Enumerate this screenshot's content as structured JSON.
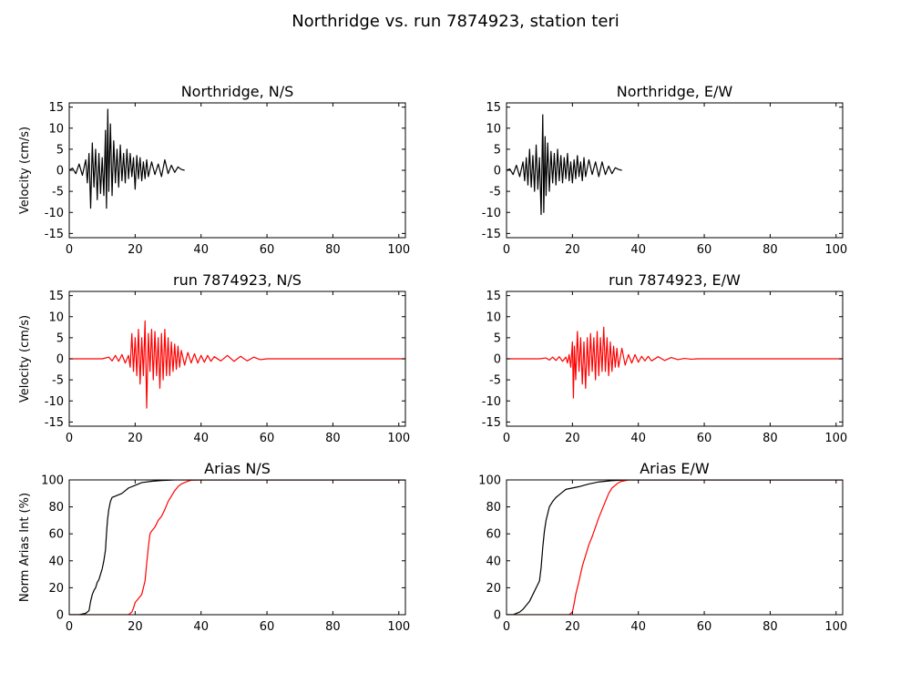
{
  "figure": {
    "suptitle": "Northridge vs. run 7874923, station teri"
  },
  "chart_data": [
    {
      "type": "line",
      "title": "Northridge, N/S",
      "ylabel": "Velocity (cm/s)",
      "xlabel": "",
      "xlim": [
        0,
        102
      ],
      "ylim": [
        -16,
        16
      ],
      "xticks": [
        0,
        20,
        40,
        60,
        80,
        100
      ],
      "yticks": [
        -15,
        -10,
        -5,
        0,
        5,
        10,
        15
      ],
      "series": [
        {
          "color": "#000000",
          "x": [
            0,
            1,
            2,
            3,
            4,
            5,
            5.5,
            6,
            6.5,
            7,
            7.5,
            8,
            8.5,
            9,
            9.5,
            10,
            10.5,
            11,
            11.3,
            11.7,
            12,
            12.5,
            13,
            13.5,
            14,
            14.5,
            15,
            15.5,
            16,
            16.5,
            17,
            17.5,
            18,
            18.5,
            19,
            19.5,
            20,
            20.5,
            21,
            21.5,
            22,
            22.5,
            23,
            23.5,
            24,
            25,
            26,
            27,
            28,
            29,
            30,
            31,
            32,
            33,
            34,
            35
          ],
          "y": [
            0,
            0.5,
            -0.8,
            1.5,
            -1.2,
            2.5,
            -3,
            4,
            -9,
            6.5,
            -4,
            5,
            -7,
            4,
            -5.5,
            3,
            -6,
            9.5,
            -9,
            14.5,
            -5,
            11,
            -6,
            7,
            -3,
            5,
            -4,
            6,
            -2.5,
            4,
            -3,
            5,
            -2,
            4,
            -1.5,
            3,
            -4.5,
            3.5,
            -2,
            3,
            -2.5,
            2,
            -2,
            2.5,
            -1.5,
            2,
            -1,
            1.5,
            -1.5,
            2.5,
            -0.8,
            1.2,
            -0.5,
            0.8,
            0.2,
            0
          ]
        }
      ]
    },
    {
      "type": "line",
      "title": "Northridge, E/W",
      "ylabel": "",
      "xlabel": "",
      "xlim": [
        0,
        102
      ],
      "ylim": [
        -16,
        16
      ],
      "xticks": [
        0,
        20,
        40,
        60,
        80,
        100
      ],
      "yticks": [
        -15,
        -10,
        -5,
        0,
        5,
        10,
        15
      ],
      "series": [
        {
          "color": "#000000",
          "x": [
            0,
            1,
            2,
            3,
            4,
            5,
            5.5,
            6,
            6.5,
            7,
            7.5,
            8,
            8.5,
            9,
            9.5,
            10,
            10.5,
            11,
            11.3,
            11.7,
            12,
            12.5,
            13,
            13.5,
            14,
            14.5,
            15,
            15.5,
            16,
            16.5,
            17,
            17.5,
            18,
            18.5,
            19,
            19.5,
            20,
            20.5,
            21,
            21.5,
            22,
            22.5,
            23,
            23.5,
            24,
            25,
            26,
            27,
            28,
            29,
            30,
            31,
            32,
            33,
            34,
            35
          ],
          "y": [
            0,
            0.3,
            -1,
            1.2,
            -1.5,
            2,
            -2.5,
            3,
            -3.5,
            5,
            -4,
            3.5,
            -5,
            6,
            -4.5,
            3,
            -10.5,
            13.2,
            -10,
            8,
            -6,
            6.5,
            -5,
            4.5,
            -3,
            4,
            -3.5,
            5,
            -2.5,
            3.5,
            -3,
            3,
            -2,
            4,
            -2.5,
            2,
            -3,
            2.5,
            -2,
            3.5,
            -1.5,
            2,
            -2.5,
            3,
            -1.5,
            2.5,
            -1,
            2,
            -1.5,
            2,
            -1,
            1,
            -0.8,
            0.6,
            0.2,
            0
          ]
        }
      ]
    },
    {
      "type": "line",
      "title": "run 7874923, N/S",
      "ylabel": "Velocity (cm/s)",
      "xlabel": "",
      "xlim": [
        0,
        102
      ],
      "ylim": [
        -16,
        16
      ],
      "xticks": [
        0,
        20,
        40,
        60,
        80,
        100
      ],
      "yticks": [
        -15,
        -10,
        -5,
        0,
        5,
        10,
        15
      ],
      "series": [
        {
          "color": "#ff0000",
          "x": [
            0,
            10,
            12,
            13,
            14,
            15,
            16,
            17,
            18,
            18.5,
            19,
            19.5,
            20,
            20.5,
            21,
            21.5,
            22,
            22.5,
            23,
            23.5,
            24,
            24.5,
            25,
            25.5,
            26,
            26.5,
            27,
            27.5,
            28,
            28.5,
            29,
            29.5,
            30,
            30.5,
            31,
            31.5,
            32,
            32.5,
            33,
            33.5,
            34,
            35,
            36,
            37,
            38,
            39,
            40,
            41,
            42,
            43,
            44,
            46,
            48,
            50,
            52,
            54,
            56,
            58,
            60,
            102
          ],
          "y": [
            0,
            0,
            0.4,
            -0.5,
            0.8,
            -0.6,
            1,
            -1,
            0.8,
            -2,
            6,
            -3,
            5,
            -4,
            7,
            -6,
            5,
            -4,
            9,
            -11.7,
            6,
            -3,
            7,
            -5,
            6.5,
            -4,
            5,
            -7,
            6,
            -5,
            7,
            -4,
            5,
            -4,
            4,
            -3,
            3.5,
            -2.5,
            3,
            -2,
            2,
            -1.5,
            1.5,
            -1,
            1.2,
            -1,
            0.8,
            -0.8,
            0.8,
            -0.6,
            0.5,
            -0.5,
            0.8,
            -0.6,
            0.6,
            -0.5,
            0.4,
            -0.2,
            0,
            0
          ]
        }
      ]
    },
    {
      "type": "line",
      "title": "run 7874923, E/W",
      "ylabel": "",
      "xlabel": "",
      "xlim": [
        0,
        102
      ],
      "ylim": [
        -16,
        16
      ],
      "xticks": [
        0,
        20,
        40,
        60,
        80,
        100
      ],
      "yticks": [
        -15,
        -10,
        -5,
        0,
        5,
        10,
        15
      ],
      "series": [
        {
          "color": "#ff0000",
          "x": [
            0,
            10,
            12,
            13,
            14,
            15,
            16,
            17,
            18,
            18.5,
            19,
            19.5,
            20,
            20.3,
            20.6,
            21,
            21.5,
            22,
            22.5,
            23,
            23.5,
            24,
            24.5,
            25,
            25.5,
            26,
            26.5,
            27,
            27.5,
            28,
            28.5,
            29,
            29.5,
            30,
            30.5,
            31,
            31.5,
            32,
            32.5,
            33,
            33.5,
            34,
            35,
            36,
            37,
            38,
            39,
            40,
            41,
            42,
            43,
            44,
            46,
            48,
            50,
            52,
            54,
            56,
            58,
            60,
            102
          ],
          "y": [
            0,
            0,
            0.2,
            -0.3,
            0.4,
            -0.4,
            0.5,
            -0.6,
            0.4,
            -1,
            1,
            -2,
            4,
            -9.3,
            3,
            -5,
            6.5,
            -3,
            5,
            -6,
            4,
            -7,
            5,
            -4,
            6,
            -3,
            5,
            -5,
            6.5,
            -4,
            5,
            -3,
            7.5,
            -3,
            5,
            -4,
            4,
            -3,
            3,
            -2,
            2.5,
            -2,
            2.5,
            -1.5,
            1,
            -1,
            1,
            -0.8,
            0.6,
            -0.5,
            0.6,
            -0.5,
            0.5,
            -0.4,
            0.3,
            -0.2,
            0.1,
            -0.1,
            0,
            0,
            0
          ]
        }
      ]
    },
    {
      "type": "line",
      "title": "Arias N/S",
      "ylabel": "Norm Arias Int (%)",
      "xlabel": "",
      "xlim": [
        0,
        102
      ],
      "ylim": [
        0,
        100
      ],
      "xticks": [
        0,
        20,
        40,
        60,
        80,
        100
      ],
      "yticks": [
        0,
        20,
        40,
        60,
        80,
        100
      ],
      "series": [
        {
          "color": "#000000",
          "x": [
            0,
            3,
            5,
            6,
            6.5,
            7,
            7.5,
            8,
            8.5,
            9,
            9.5,
            10,
            10.5,
            11,
            11.3,
            11.6,
            12,
            12.5,
            13,
            14,
            15,
            16,
            17,
            18,
            20,
            22,
            25,
            28,
            32,
            102
          ],
          "y": [
            0,
            0,
            1,
            3,
            10,
            15,
            18,
            20,
            24,
            26,
            30,
            34,
            40,
            48,
            60,
            70,
            78,
            84,
            87,
            88,
            89,
            90,
            92,
            94,
            96,
            98,
            99,
            99.6,
            100,
            100
          ]
        },
        {
          "color": "#ff0000",
          "x": [
            0,
            18,
            19,
            19.5,
            20,
            21,
            22,
            23,
            23.5,
            24,
            24.5,
            25,
            26,
            27,
            28,
            29,
            30,
            31,
            32,
            33,
            34,
            35,
            36,
            37,
            40,
            102
          ],
          "y": [
            0,
            0,
            2,
            5,
            9,
            12,
            15,
            25,
            38,
            50,
            60,
            62,
            65,
            70,
            73,
            78,
            84,
            88,
            92,
            95,
            97,
            98,
            99,
            99.8,
            100,
            100
          ]
        }
      ]
    },
    {
      "type": "line",
      "title": "Arias E/W",
      "ylabel": "",
      "xlabel": "",
      "xlim": [
        0,
        102
      ],
      "ylim": [
        0,
        100
      ],
      "xticks": [
        0,
        20,
        40,
        60,
        80,
        100
      ],
      "yticks": [
        0,
        20,
        40,
        60,
        80,
        100
      ],
      "series": [
        {
          "color": "#000000",
          "x": [
            0,
            2,
            4,
            5,
            6,
            7,
            8,
            9,
            10,
            10.5,
            11,
            11.5,
            12,
            12.5,
            13,
            14,
            15,
            16,
            17,
            18,
            20,
            22,
            25,
            28,
            32,
            36,
            102
          ],
          "y": [
            0,
            0,
            2,
            4,
            7,
            10,
            15,
            20,
            25,
            35,
            50,
            62,
            70,
            75,
            80,
            84,
            87,
            89,
            91,
            93,
            94,
            95,
            97,
            98.5,
            99.5,
            100,
            100
          ]
        },
        {
          "color": "#ff0000",
          "x": [
            0,
            19,
            20,
            20.5,
            21,
            22,
            23,
            24,
            25,
            26,
            27,
            28,
            29,
            30,
            31,
            32,
            33,
            34,
            35,
            36,
            37,
            40,
            102
          ],
          "y": [
            0,
            0,
            2,
            8,
            15,
            25,
            36,
            44,
            52,
            58,
            65,
            72,
            78,
            84,
            90,
            94,
            96,
            98,
            99,
            99.5,
            100,
            100,
            100
          ]
        }
      ]
    }
  ]
}
